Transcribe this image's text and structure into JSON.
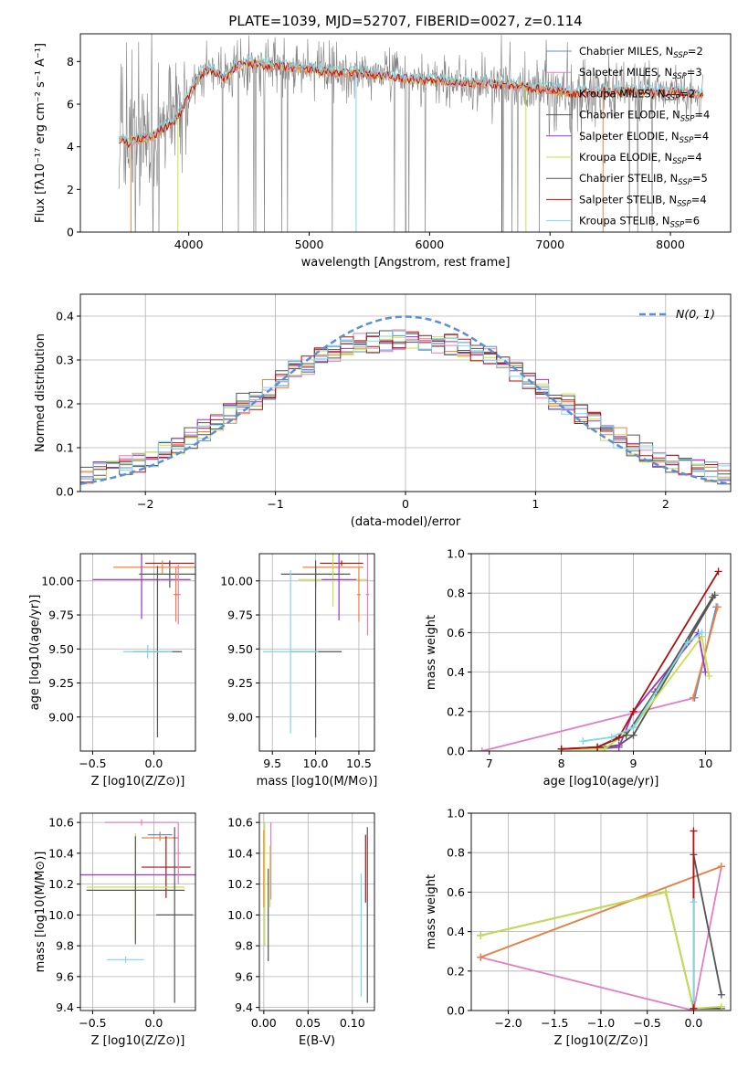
{
  "colors": {
    "chabrier_miles": "#5b8fd9",
    "salpeter_miles": "#e37fc0",
    "kroupa_miles": "#f0813a",
    "chabrier_elodie": "#555555",
    "salpeter_elodie": "#9b36c8",
    "kroupa_elodie": "#c6e04a",
    "chabrier_stelib": "#555555",
    "salpeter_stelib": "#b01010",
    "kroupa_stelib": "#7dd8e6",
    "spectrum_data": "#808080",
    "grid": "#b0b0b0"
  },
  "chart_data": [
    {
      "id": "spectrum",
      "type": "line",
      "title": "PLATE=1039, MJD=52707, FIBERID=0027, z=0.114",
      "xlabel": "wavelength [Angstrom, rest frame]",
      "ylabel": "Flux [fλ10⁻¹⁷ erg cm⁻² s⁻¹ A⁻¹]",
      "xlim": [
        3100,
        8500
      ],
      "ylim": [
        0,
        9.3
      ],
      "xticks": [
        4000,
        5000,
        6000,
        7000,
        8000
      ],
      "yticks": [
        0,
        2,
        4,
        6,
        8
      ],
      "legend": "top-right",
      "legend_entries": [
        {
          "text": "Chabrier MILES, N",
          "sub": "SSP",
          "tail": "=2",
          "color": "chabrier_miles"
        },
        {
          "text": "Salpeter MILES, N",
          "sub": "SSP",
          "tail": "=3",
          "color": "salpeter_miles"
        },
        {
          "text": "Kroupa MILES, N",
          "sub": "SSP",
          "tail": "=2",
          "color": "kroupa_miles"
        },
        {
          "text": "Chabrier ELODIE, N",
          "sub": "SSP",
          "tail": "=4",
          "color": "chabrier_elodie"
        },
        {
          "text": "Salpeter ELODIE, N",
          "sub": "SSP",
          "tail": "=4",
          "color": "salpeter_elodie"
        },
        {
          "text": "Kroupa ELODIE, N",
          "sub": "SSP",
          "tail": "=4",
          "color": "kroupa_elodie"
        },
        {
          "text": "Chabrier STELIB, N",
          "sub": "SSP",
          "tail": "=5",
          "color": "chabrier_stelib"
        },
        {
          "text": "Salpeter STELIB, N",
          "sub": "SSP",
          "tail": "=4",
          "color": "salpeter_stelib"
        },
        {
          "text": "Kroupa STELIB, N",
          "sub": "SSP",
          "tail": "=6",
          "color": "kroupa_stelib"
        }
      ],
      "continuum_x": [
        3420,
        3500,
        3600,
        3700,
        3800,
        3900,
        4000,
        4100,
        4200,
        4300,
        4400,
        4500,
        4700,
        5000,
        5200,
        5500,
        5800,
        6000,
        6300,
        6600,
        6800,
        7000,
        7200,
        7500,
        7800,
        8000,
        8270
      ],
      "continuum_y": [
        4.3,
        4.2,
        4.4,
        4.5,
        4.9,
        5.3,
        6.4,
        7.4,
        7.6,
        7.2,
        7.8,
        7.9,
        7.8,
        7.6,
        7.5,
        7.4,
        7.2,
        7.1,
        7.0,
        6.9,
        6.8,
        6.7,
        6.5,
        6.6,
        6.6,
        6.6,
        6.4
      ]
    },
    {
      "id": "residual_hist",
      "type": "line",
      "xlabel": "(data-model)/error",
      "ylabel": "Normed distribution",
      "xlim": [
        -2.5,
        2.5
      ],
      "ylim": [
        0,
        0.45
      ],
      "xticks": [
        -2,
        -1,
        0,
        1,
        2
      ],
      "yticks": [
        0.0,
        0.1,
        0.2,
        0.3,
        0.4
      ],
      "legend": "top-right",
      "gaussian_label": "N(0, 1)",
      "bin_width": 0.1
    },
    {
      "id": "age_vs_Z",
      "type": "scatter",
      "xlabel": "Z [log10(Z/Z⊙)]",
      "ylabel": "age  [log10(age/yr)]",
      "xlim": [
        -0.6,
        0.34
      ],
      "ylim": [
        8.75,
        10.2
      ],
      "xticks": [
        -0.5,
        0.0
      ],
      "yticks": [
        9.0,
        9.25,
        9.5,
        9.75,
        10.0
      ],
      "points": [
        {
          "x": 0.13,
          "y": 10.13,
          "xerr": 0.2,
          "yerr": 0.02,
          "color": "salpeter_stelib"
        },
        {
          "x": 0.13,
          "y": 10.05,
          "xerr": 0.25,
          "yerr": 0.1,
          "color": "chabrier_stelib"
        },
        {
          "x": 0.07,
          "y": 10.1,
          "xerr": 0.4,
          "yerr": 0.05,
          "color": "kroupa_miles"
        },
        {
          "x": -0.1,
          "y": 10.01,
          "xerr": 0.4,
          "yerr": 0.2,
          "color": "kroupa_elodie"
        },
        {
          "x": -0.1,
          "y": 10.01,
          "xerr": 0.4,
          "yerr": 0.29,
          "color": "salpeter_elodie"
        },
        {
          "x": 0.2,
          "y": 9.9,
          "xerr": 0.02,
          "yerr": 0.22,
          "color": "salpeter_miles"
        },
        {
          "x": 0.03,
          "y": 9.48,
          "xerr": 0.2,
          "yerr": 0.63,
          "color": "chabrier_elodie"
        },
        {
          "x": -0.05,
          "y": 9.48,
          "xerr": 0.2,
          "yerr": 0.05,
          "color": "kroupa_stelib"
        },
        {
          "x": 0.18,
          "y": 9.9,
          "xerr": 0.02,
          "yerr": 0.2,
          "color": "kroupa_miles"
        }
      ]
    },
    {
      "id": "age_vs_mass",
      "type": "scatter",
      "xlabel": "mass [log10(M/M⊙)]",
      "ylabel": "",
      "xlim": [
        9.35,
        10.68
      ],
      "ylim": [
        8.75,
        10.2
      ],
      "xticks": [
        9.5,
        10.0,
        10.5
      ],
      "yticks": [
        9.0,
        9.25,
        9.5,
        9.75,
        10.0
      ],
      "points": [
        {
          "x": 10.3,
          "y": 10.13,
          "xerr": 0.25,
          "yerr": 0.02,
          "color": "salpeter_stelib"
        },
        {
          "x": 10.0,
          "y": 10.05,
          "xerr": 0.4,
          "yerr": 0.1,
          "color": "chabrier_stelib"
        },
        {
          "x": 10.2,
          "y": 10.1,
          "xerr": 0.35,
          "yerr": 0.05,
          "color": "kroupa_miles"
        },
        {
          "x": 10.2,
          "y": 10.01,
          "xerr": 0.4,
          "yerr": 0.2,
          "color": "kroupa_elodie"
        },
        {
          "x": 10.27,
          "y": 10.01,
          "xerr": 0.2,
          "yerr": 0.3,
          "color": "salpeter_elodie"
        },
        {
          "x": 10.6,
          "y": 9.9,
          "xerr": 0.02,
          "yerr": 0.3,
          "color": "salpeter_miles"
        },
        {
          "x": 10.0,
          "y": 9.48,
          "xerr": 0.3,
          "yerr": 0.63,
          "color": "chabrier_elodie"
        },
        {
          "x": 9.71,
          "y": 9.48,
          "xerr": 0.32,
          "yerr": 0.6,
          "color": "kroupa_stelib"
        },
        {
          "x": 10.5,
          "y": 9.9,
          "xerr": 0.02,
          "yerr": 0.2,
          "color": "kroupa_miles"
        }
      ]
    },
    {
      "id": "massweight_vs_age",
      "type": "line",
      "xlabel": "age  [log10(age/yr)]",
      "ylabel": "mass weight",
      "xlim": [
        6.75,
        10.35
      ],
      "ylim": [
        0,
        1.0
      ],
      "xticks": [
        7,
        8,
        9,
        10
      ],
      "yticks": [
        0.0,
        0.2,
        0.4,
        0.6,
        0.8,
        1.0
      ],
      "series": [
        {
          "color": "salpeter_miles",
          "x": [
            6.9,
            9.85
          ],
          "y": [
            0.0,
            0.27
          ]
        },
        {
          "color": "chabrier_miles",
          "x": [
            9.85,
            10.15
          ],
          "y": [
            0.27,
            0.73
          ]
        },
        {
          "color": "kroupa_miles",
          "x": [
            9.83,
            10.17
          ],
          "y": [
            0.27,
            0.73
          ]
        },
        {
          "color": "chabrier_elodie",
          "x": [
            8.0,
            8.6,
            8.8,
            9.0,
            10.13
          ],
          "y": [
            0.01,
            0.02,
            0.03,
            0.08,
            0.79
          ]
        },
        {
          "color": "salpeter_elodie",
          "x": [
            8.5,
            8.8,
            9.0,
            9.9,
            10.0
          ],
          "y": [
            0.01,
            0.02,
            0.2,
            0.6,
            0.4
          ]
        },
        {
          "color": "kroupa_elodie",
          "x": [
            8.0,
            8.6,
            9.0,
            9.95,
            10.05
          ],
          "y": [
            0.01,
            0.01,
            0.12,
            0.58,
            0.38
          ]
        },
        {
          "color": "chabrier_stelib",
          "x": [
            8.0,
            8.5,
            8.9,
            9.3,
            10.1
          ],
          "y": [
            0.01,
            0.02,
            0.08,
            0.3,
            0.78
          ]
        },
        {
          "color": "salpeter_stelib",
          "x": [
            8.0,
            8.5,
            8.8,
            9.0,
            10.18
          ],
          "y": [
            0.01,
            0.02,
            0.07,
            0.2,
            0.91
          ]
        },
        {
          "color": "kroupa_stelib",
          "x": [
            8.3,
            8.7,
            9.0,
            9.75,
            9.95
          ],
          "y": [
            0.05,
            0.07,
            0.12,
            0.55,
            0.6
          ]
        }
      ]
    },
    {
      "id": "mass_vs_Z",
      "type": "scatter",
      "xlabel": "Z [log10(Z/Z⊙)]",
      "ylabel": "mass [log10(M/M⊙)]",
      "xlim": [
        -0.6,
        0.34
      ],
      "ylim": [
        9.38,
        10.66
      ],
      "xticks": [
        -0.5,
        0.0
      ],
      "yticks": [
        9.4,
        9.6,
        9.8,
        10.0,
        10.2,
        10.4,
        10.6
      ],
      "points": [
        {
          "x": -0.1,
          "y": 10.6,
          "xerr": 0.3,
          "yerr": 0.02,
          "color": "salpeter_miles"
        },
        {
          "x": 0.05,
          "y": 10.52,
          "xerr": 0.1,
          "yerr": 0.02,
          "color": "chabrier_miles"
        },
        {
          "x": 0.05,
          "y": 10.5,
          "xerr": 0.15,
          "yerr": 0.02,
          "color": "kroupa_miles"
        },
        {
          "x": 0.1,
          "y": 10.31,
          "xerr": 0.2,
          "yerr": 0.2,
          "color": "salpeter_stelib"
        },
        {
          "x": -0.15,
          "y": 10.26,
          "xerr": 0.5,
          "yerr": 0.02,
          "color": "salpeter_elodie"
        },
        {
          "x": -0.15,
          "y": 10.18,
          "xerr": 0.4,
          "yerr": 0.35,
          "color": "kroupa_elodie"
        },
        {
          "x": -0.15,
          "y": 10.16,
          "xerr": 0.4,
          "yerr": 0.35,
          "color": "chabrier_elodie"
        },
        {
          "x": 0.17,
          "y": 10.0,
          "xerr": 0.15,
          "yerr": 0.57,
          "color": "chabrier_stelib"
        },
        {
          "x": -0.23,
          "y": 9.71,
          "xerr": 0.15,
          "yerr": 0.02,
          "color": "kroupa_stelib"
        },
        {
          "x": 0.2,
          "y": 10.4,
          "xerr": 0.02,
          "yerr": 0.2,
          "color": "salpeter_miles"
        }
      ]
    },
    {
      "id": "mass_vs_ebv",
      "type": "scatter",
      "xlabel": "E(B-V)",
      "ylabel": "",
      "xlim": [
        -0.005,
        0.125
      ],
      "ylim": [
        9.38,
        10.66
      ],
      "xticks": [
        0.0,
        0.05,
        0.1
      ],
      "yticks": [
        9.4,
        9.6,
        9.8,
        10.0,
        10.2,
        10.4,
        10.6
      ],
      "points": [
        {
          "x": 0.0,
          "y": 10.3,
          "xerr": 0,
          "yerr": 0.25,
          "color": "kroupa_miles"
        },
        {
          "x": 0.001,
          "y": 10.2,
          "xerr": 0,
          "yerr": 0.4,
          "color": "kroupa_elodie"
        },
        {
          "x": 0.005,
          "y": 10.0,
          "xerr": 0,
          "yerr": 0.3,
          "color": "chabrier_elodie"
        },
        {
          "x": 0.008,
          "y": 10.35,
          "xerr": 0,
          "yerr": 0.25,
          "color": "salpeter_miles"
        },
        {
          "x": 0.007,
          "y": 10.25,
          "xerr": 0,
          "yerr": 0.2,
          "color": "kroupa_elodie"
        },
        {
          "x": 0.11,
          "y": 9.87,
          "xerr": 0,
          "yerr": 0.4,
          "color": "kroupa_stelib"
        },
        {
          "x": 0.117,
          "y": 10.0,
          "xerr": 0,
          "yerr": 0.57,
          "color": "chabrier_stelib"
        },
        {
          "x": 0.115,
          "y": 10.3,
          "xerr": 0,
          "yerr": 0.22,
          "color": "salpeter_stelib"
        }
      ]
    },
    {
      "id": "massweight_vs_Z",
      "type": "line",
      "xlabel": "Z [log10(Z/Z⊙)]",
      "ylabel": "mass weight",
      "xlim": [
        -2.4,
        0.4
      ],
      "ylim": [
        0,
        1.0
      ],
      "xticks": [
        -2.0,
        -1.5,
        -1.0,
        -0.5,
        0.0
      ],
      "yticks": [
        0.0,
        0.2,
        0.4,
        0.6,
        0.8,
        1.0
      ],
      "series": [
        {
          "color": "salpeter_miles",
          "x": [
            -2.3,
            0.0,
            0.3
          ],
          "y": [
            0.27,
            0.0,
            0.73
          ]
        },
        {
          "color": "chabrier_miles",
          "x": [
            -2.3,
            0.3
          ],
          "y": [
            0.27,
            0.73
          ]
        },
        {
          "color": "kroupa_miles",
          "x": [
            -2.3,
            0.3
          ],
          "y": [
            0.27,
            0.73
          ]
        },
        {
          "color": "chabrier_elodie",
          "x": [
            -2.3,
            -0.3,
            0.0,
            0.3
          ],
          "y": [
            0.38,
            0.6,
            0.01,
            0.01
          ]
        },
        {
          "color": "kroupa_elodie",
          "x": [
            -2.3,
            -0.3,
            0.0,
            0.3
          ],
          "y": [
            0.38,
            0.6,
            0.01,
            0.02
          ]
        },
        {
          "color": "chabrier_stelib",
          "x": [
            0.0,
            0.0,
            0.3
          ],
          "y": [
            0.01,
            0.79,
            0.08
          ]
        },
        {
          "color": "salpeter_stelib",
          "x": [
            0.0,
            0.0
          ],
          "y": [
            0.01,
            0.91
          ]
        },
        {
          "color": "kroupa_stelib",
          "x": [
            0.0,
            0.0
          ],
          "y": [
            0.05,
            0.55
          ]
        }
      ]
    }
  ]
}
